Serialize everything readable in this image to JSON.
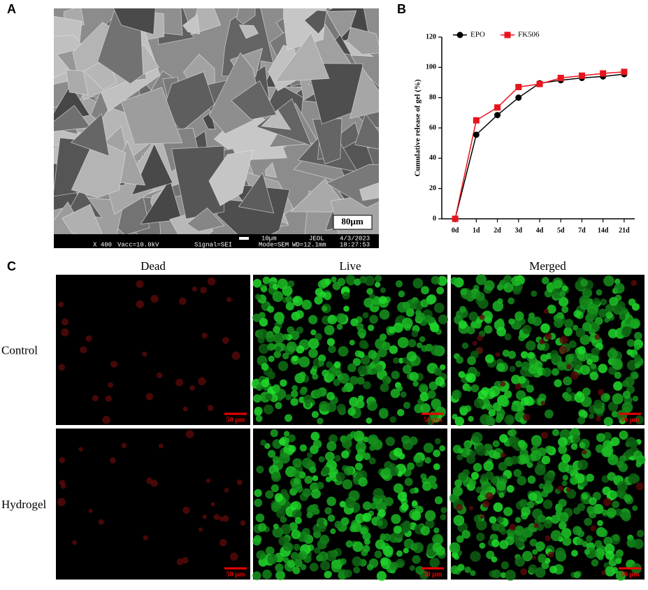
{
  "panel_labels": [
    "A",
    "B",
    "C"
  ],
  "sem": {
    "scale_label": "80µm",
    "info_top": [
      "10µm",
      "JEOL",
      "4/3/2023"
    ],
    "info_bottom": [
      "X 400",
      "Vacc=10.0kV",
      "Signal=SEI",
      "Mode=SEM",
      "WD=12.1mm",
      "18:27:53"
    ]
  },
  "chart_data": {
    "type": "line",
    "y_label": "Cumulative release of gel (%)",
    "categories": [
      "0d",
      "1d",
      "2d",
      "3d",
      "4d",
      "5d",
      "7d",
      "14d",
      "21d"
    ],
    "series": [
      {
        "name": "EPO",
        "color": "#000000",
        "marker": "circle",
        "values": [
          0,
          55.5,
          68.5,
          80,
          89.5,
          91.5,
          93,
          94,
          95.5
        ]
      },
      {
        "name": "FK506",
        "color": "#e8141c",
        "marker": "square",
        "values": [
          0,
          65,
          73.5,
          87,
          89,
          93,
          94.5,
          96,
          97
        ]
      }
    ],
    "ylim": [
      0,
      120
    ],
    "yticks": [
      0,
      20,
      40,
      60,
      80,
      100,
      120
    ],
    "legend": "top-left",
    "grid": false
  },
  "viability": {
    "columns": [
      "Dead",
      "Live",
      "Merged"
    ],
    "rows": [
      "Control",
      "Hydrogel"
    ],
    "scale_label": "50 µm"
  }
}
